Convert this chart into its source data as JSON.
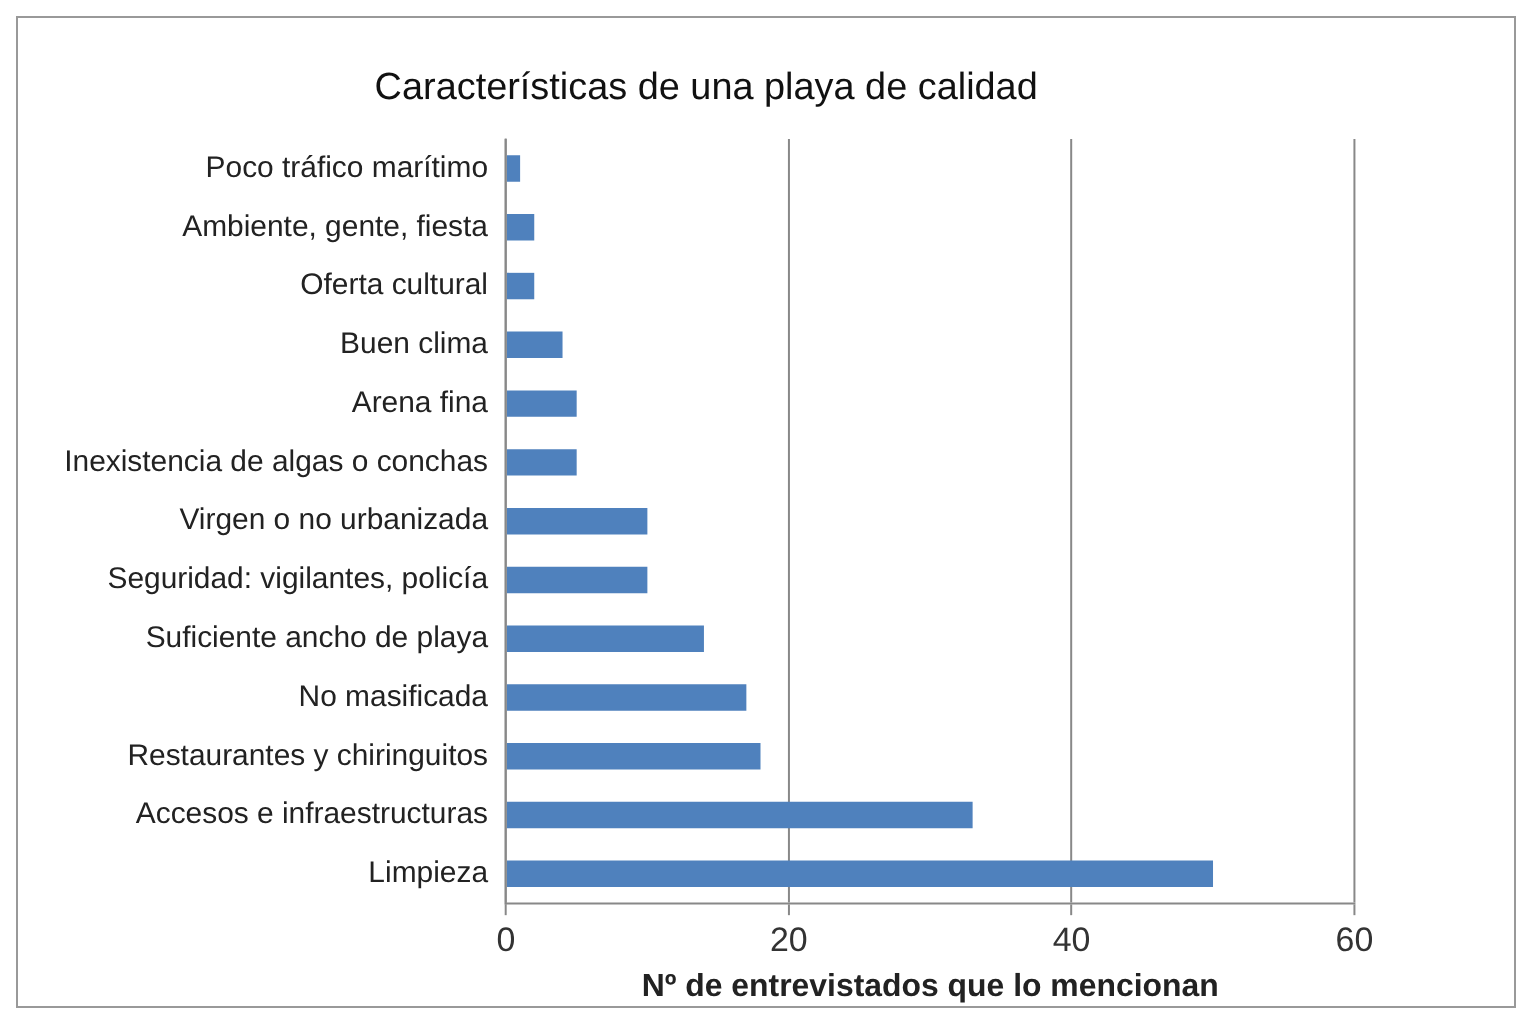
{
  "chart_data": {
    "type": "bar",
    "orientation": "horizontal",
    "title": "Características de una playa de calidad",
    "xlabel": "Nº de entrevistados que lo mencionan",
    "categories": [
      "Poco tráfico marítimo",
      "Ambiente, gente, fiesta",
      "Oferta cultural",
      "Buen clima",
      "Arena fina",
      "Inexistencia de algas o conchas",
      "Virgen o no urbanizada",
      "Seguridad: vigilantes, policía",
      "Suficiente ancho de playa",
      "No masificada",
      "Restaurantes y chiringuitos",
      "Accesos e infraestructuras",
      "Limpieza"
    ],
    "values": [
      1,
      2,
      2,
      4,
      5,
      5,
      10,
      10,
      14,
      17,
      18,
      33,
      50
    ],
    "color": "#4f81bd",
    "xlim": [
      0,
      60
    ],
    "xticks": [
      0,
      20,
      40,
      60
    ],
    "grid": "x",
    "legend": false
  }
}
